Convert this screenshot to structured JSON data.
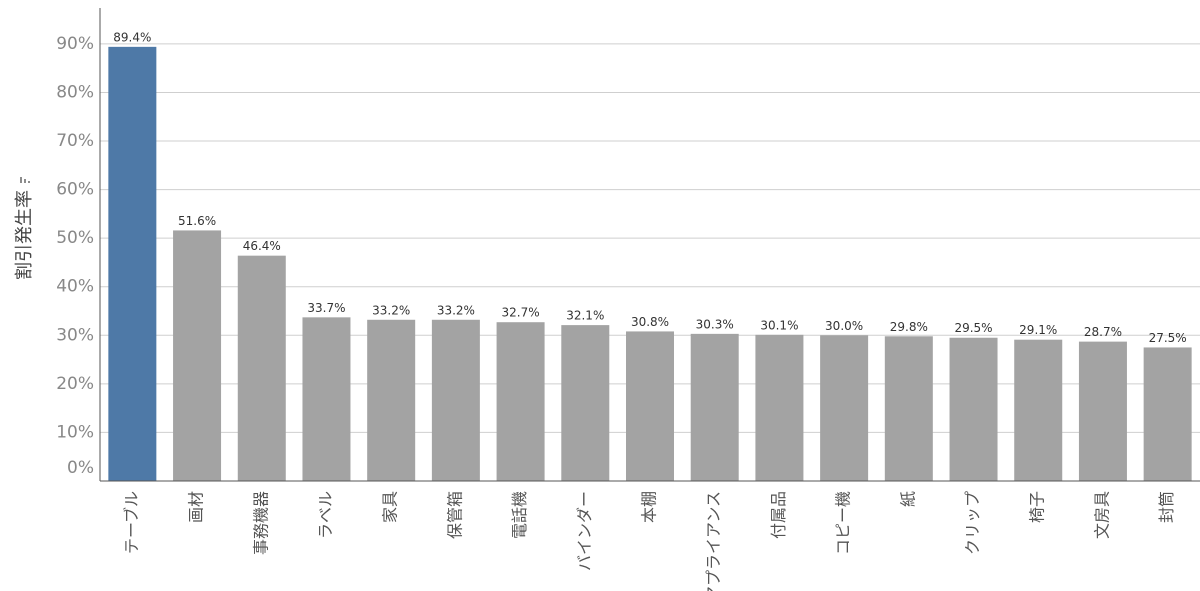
{
  "chart_data": {
    "type": "bar",
    "y_label": "割引発生率",
    "categories": [
      "テーブル",
      "画材",
      "事務機器",
      "ラベル",
      "家具",
      "保管箱",
      "電話機",
      "バインダー",
      "本棚",
      "アプライアンス",
      "付属品",
      "コピー機",
      "紙",
      "クリップ",
      "椅子",
      "文房具",
      "封筒"
    ],
    "values": [
      89.4,
      51.6,
      46.4,
      33.7,
      33.2,
      33.2,
      32.7,
      32.1,
      30.8,
      30.3,
      30.1,
      30.0,
      29.8,
      29.5,
      29.1,
      28.7,
      27.5
    ],
    "value_labels": [
      "89.4%",
      "51.6%",
      "46.4%",
      "33.7%",
      "33.2%",
      "33.2%",
      "32.7%",
      "32.1%",
      "30.8%",
      "30.3%",
      "30.1%",
      "30.0%",
      "29.8%",
      "29.5%",
      "29.1%",
      "28.7%",
      "27.5%"
    ],
    "colors": [
      "#4e79a7",
      "#a3a3a3",
      "#a3a3a3",
      "#a3a3a3",
      "#a3a3a3",
      "#a3a3a3",
      "#a3a3a3",
      "#a3a3a3",
      "#a3a3a3",
      "#a3a3a3",
      "#a3a3a3",
      "#a3a3a3",
      "#a3a3a3",
      "#a3a3a3",
      "#a3a3a3",
      "#a3a3a3",
      "#a3a3a3"
    ],
    "ylim": [
      0,
      97.4
    ],
    "yticks": [
      {
        "value": 0,
        "label": "0%"
      },
      {
        "value": 10,
        "label": "10%"
      },
      {
        "value": 20,
        "label": "20%"
      },
      {
        "value": 30,
        "label": "30%"
      },
      {
        "value": 40,
        "label": "40%"
      },
      {
        "value": 50,
        "label": "50%"
      },
      {
        "value": 60,
        "label": "60%"
      },
      {
        "value": 70,
        "label": "70%"
      },
      {
        "value": 80,
        "label": "80%"
      },
      {
        "value": 90,
        "label": "90%"
      }
    ],
    "grid": true
  }
}
